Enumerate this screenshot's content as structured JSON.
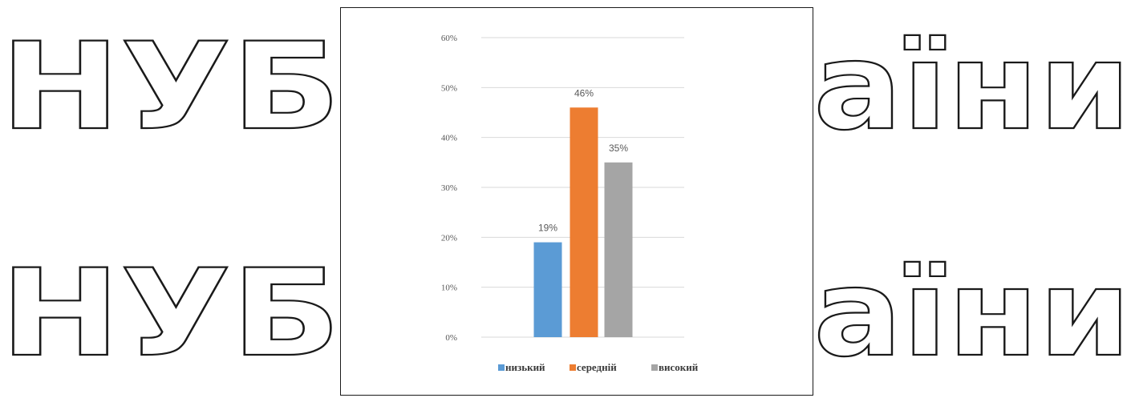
{
  "watermark": {
    "line1_left": "НУБ",
    "line1_right": "аїни",
    "line2_left": "НУБ",
    "line2_right": "аїни"
  },
  "colors": {
    "watermark_stroke": "#1a1a1a",
    "gridline": "#d9d9d9",
    "axis_text": "#595959",
    "frame": "#1a1a1a"
  },
  "chart_data": {
    "type": "bar",
    "categories": [
      "низький",
      "середній",
      "високий"
    ],
    "values": [
      19,
      46,
      35
    ],
    "data_labels": [
      "19%",
      "46%",
      "35%"
    ],
    "colors": [
      "#5b9bd5",
      "#ed7d31",
      "#a5a5a5"
    ],
    "y_ticks": [
      0,
      10,
      20,
      30,
      40,
      50,
      60
    ],
    "y_tick_labels": [
      "0%",
      "10%",
      "20%",
      "30%",
      "40%",
      "50%",
      "60%"
    ],
    "ylim": [
      0,
      60
    ],
    "grid": true,
    "legend_position": "bottom",
    "title": "",
    "xlabel": "",
    "ylabel": ""
  }
}
